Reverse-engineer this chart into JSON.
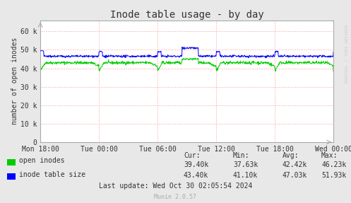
{
  "title": "Inode table usage - by day",
  "ylabel": "number of open inodes",
  "bg_color": "#e8e8e8",
  "plot_bg_color": "#ffffff",
  "grid_color": "#ff9999",
  "border_color": "#aaaaaa",
  "yticks": [
    0,
    10000,
    20000,
    30000,
    40000,
    50000,
    60000
  ],
  "ytick_labels": [
    "0",
    "10 k",
    "20 k",
    "30 k",
    "40 k",
    "50 k",
    "60 k"
  ],
  "ylim": [
    0,
    66000
  ],
  "xtick_labels": [
    "Mon 18:00",
    "Tue 00:00",
    "Tue 06:00",
    "Tue 12:00",
    "Tue 18:00",
    "Wed 00:00"
  ],
  "legend_items": [
    {
      "label": "open inodes",
      "color": "#00cc00"
    },
    {
      "label": "inode table size",
      "color": "#0000ff"
    }
  ],
  "stats_headers": [
    "Cur:",
    "Min:",
    "Avg:",
    "Max:"
  ],
  "stats_open_inodes": [
    "39.40k",
    "37.63k",
    "42.42k",
    "46.23k"
  ],
  "stats_inode_table": [
    "43.40k",
    "41.10k",
    "47.03k",
    "51.93k"
  ],
  "footer": "Last update: Wed Oct 30 02:05:54 2024",
  "munin_version": "Munin 2.0.57",
  "right_label": "RRDTOOL / TOBI OETIKER",
  "open_inodes_color": "#00cc00",
  "inode_table_color": "#0000ff"
}
